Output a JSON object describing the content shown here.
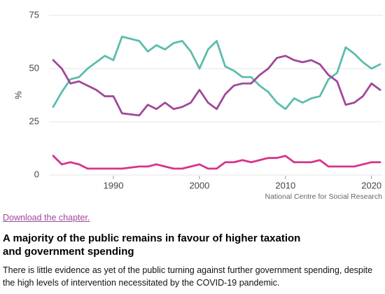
{
  "chart_data": {
    "type": "line",
    "y_label": "%",
    "source": "National Centre for Social Research",
    "x": [
      1983,
      1984,
      1985,
      1986,
      1987,
      1988,
      1989,
      1990,
      1991,
      1993,
      1994,
      1995,
      1996,
      1997,
      1998,
      1999,
      2000,
      2001,
      2002,
      2003,
      2004,
      2005,
      2006,
      2007,
      2008,
      2009,
      2010,
      2011,
      2012,
      2013,
      2014,
      2015,
      2016,
      2017,
      2018,
      2019,
      2020,
      2021
    ],
    "series": [
      {
        "color": "#5bbdae",
        "values": [
          32,
          39,
          45,
          46,
          50,
          53,
          56,
          54,
          65,
          63,
          58,
          61,
          59,
          62,
          63,
          58,
          50,
          59,
          63,
          51,
          49,
          46,
          46,
          42,
          39,
          34,
          31,
          36,
          34,
          36,
          37,
          45,
          48,
          60,
          57,
          53,
          50,
          52
        ]
      },
      {
        "color": "#a0489a",
        "values": [
          54,
          50,
          43,
          44,
          42,
          40,
          37,
          37,
          29,
          28,
          33,
          31,
          34,
          31,
          32,
          34,
          40,
          34,
          31,
          38,
          42,
          43,
          43,
          47,
          50,
          55,
          56,
          54,
          53,
          54,
          52,
          47,
          44,
          33,
          34,
          37,
          43,
          40
        ]
      },
      {
        "color": "#d6338a",
        "values": [
          9,
          5,
          6,
          5,
          3,
          3,
          3,
          3,
          3,
          4,
          4,
          5,
          4,
          3,
          3,
          4,
          5,
          3,
          3,
          6,
          6,
          7,
          6,
          7,
          8,
          8,
          9,
          6,
          6,
          6,
          7,
          4,
          4,
          4,
          4,
          5,
          6,
          6
        ]
      }
    ],
    "xlim": [
      1983,
      2021
    ],
    "xticks": [
      1990,
      2000,
      2010,
      2020
    ],
    "ylim": [
      0,
      75
    ],
    "yticks": [
      0,
      25,
      50,
      75
    ],
    "grid": true
  },
  "link": "Download the chapter.",
  "heading": "A majority of the public remains in favour of higher taxation and government spending",
  "paragraph": "There is little evidence as yet of the public turning against further government spending, despite the high levels of intervention necessitated by the COVID-19 pandemic."
}
